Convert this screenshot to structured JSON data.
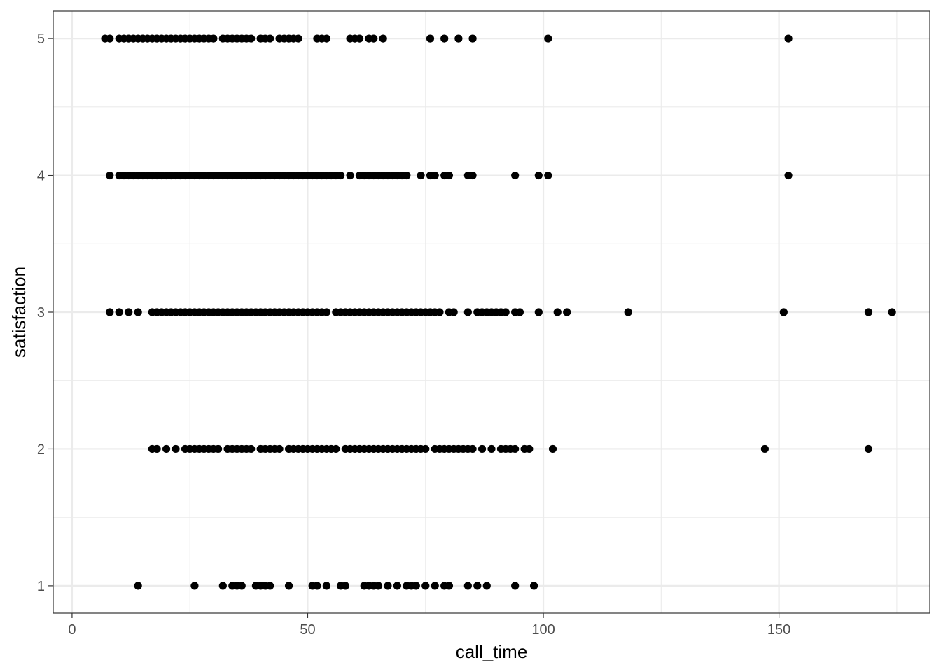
{
  "chart_data": {
    "type": "scatter",
    "title": "",
    "xlabel": "call_time",
    "ylabel": "satisfaction",
    "xlim": [
      -4,
      182
    ],
    "ylim": [
      0.8,
      5.2
    ],
    "x_ticks": [
      0,
      50,
      100,
      150
    ],
    "x_tick_labels": [
      "0",
      "50",
      "100",
      "150"
    ],
    "y_ticks": [
      1,
      2,
      3,
      4,
      5
    ],
    "y_tick_labels": [
      "1",
      "2",
      "3",
      "4",
      "5"
    ],
    "grid": true,
    "legend": "none",
    "point_color": "#000000",
    "series": [
      {
        "y": 5,
        "x": [
          7,
          8,
          10,
          11,
          12,
          13,
          14,
          15,
          16,
          17,
          18,
          19,
          20,
          21,
          22,
          23,
          24,
          25,
          26,
          27,
          28,
          29,
          30,
          32,
          33,
          34,
          35,
          36,
          37,
          38,
          40,
          41,
          42,
          44,
          45,
          46,
          47,
          48,
          52,
          53,
          54,
          59,
          60,
          61,
          63,
          64,
          66,
          76,
          79,
          82,
          85,
          101,
          152
        ]
      },
      {
        "y": 4,
        "x": [
          8,
          10,
          11,
          12,
          13,
          14,
          15,
          16,
          17,
          18,
          19,
          20,
          21,
          22,
          23,
          24,
          25,
          26,
          27,
          28,
          29,
          30,
          31,
          32,
          33,
          34,
          35,
          36,
          37,
          38,
          39,
          40,
          41,
          42,
          43,
          44,
          45,
          46,
          47,
          48,
          49,
          50,
          51,
          52,
          53,
          54,
          55,
          56,
          57,
          59,
          61,
          62,
          63,
          64,
          65,
          66,
          67,
          68,
          69,
          70,
          71,
          74,
          76,
          77,
          79,
          80,
          84,
          85,
          94,
          99,
          101,
          152
        ]
      },
      {
        "y": 3,
        "x": [
          8,
          10,
          12,
          14,
          17,
          18,
          19,
          20,
          21,
          22,
          23,
          24,
          25,
          26,
          27,
          28,
          29,
          30,
          31,
          32,
          33,
          34,
          35,
          36,
          37,
          38,
          39,
          40,
          41,
          42,
          43,
          44,
          45,
          46,
          47,
          48,
          49,
          50,
          51,
          52,
          53,
          54,
          56,
          57,
          58,
          59,
          60,
          61,
          62,
          63,
          64,
          65,
          66,
          67,
          68,
          69,
          70,
          71,
          72,
          73,
          74,
          75,
          76,
          77,
          78,
          80,
          81,
          84,
          86,
          87,
          88,
          89,
          90,
          91,
          92,
          94,
          95,
          99,
          103,
          105,
          118,
          151,
          169,
          174
        ]
      },
      {
        "y": 2,
        "x": [
          17,
          18,
          20,
          22,
          24,
          25,
          26,
          27,
          28,
          29,
          30,
          31,
          33,
          34,
          35,
          36,
          37,
          38,
          40,
          41,
          42,
          43,
          44,
          46,
          47,
          48,
          49,
          50,
          51,
          52,
          53,
          54,
          55,
          56,
          58,
          59,
          60,
          61,
          62,
          63,
          64,
          65,
          66,
          67,
          68,
          69,
          70,
          71,
          72,
          73,
          74,
          75,
          77,
          78,
          79,
          80,
          81,
          82,
          83,
          84,
          85,
          87,
          89,
          91,
          92,
          93,
          94,
          96,
          97,
          102,
          147,
          169
        ]
      },
      {
        "y": 1,
        "x": [
          14,
          26,
          32,
          34,
          35,
          36,
          39,
          40,
          41,
          42,
          46,
          51,
          52,
          54,
          57,
          58,
          62,
          63,
          64,
          65,
          67,
          69,
          71,
          72,
          73,
          75,
          77,
          79,
          80,
          84,
          86,
          88,
          94,
          98
        ]
      }
    ]
  }
}
